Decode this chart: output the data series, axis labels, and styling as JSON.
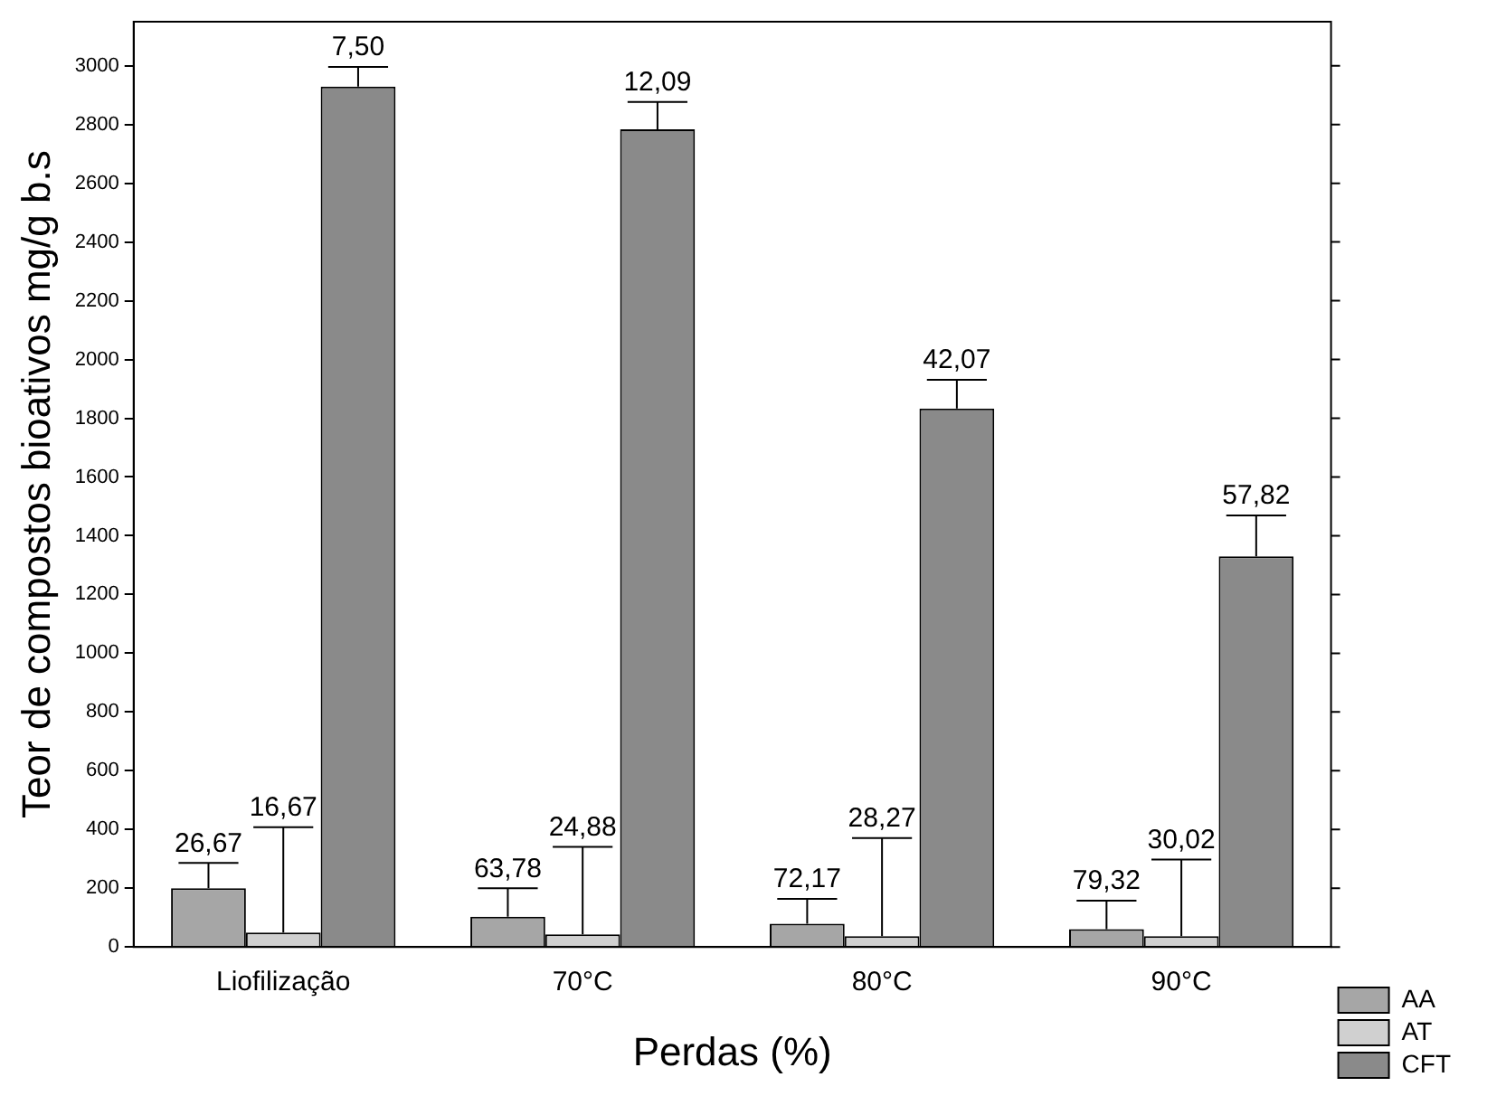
{
  "chart_data": {
    "type": "bar",
    "xlabel": "Perdas (%)",
    "ylabel": "Teor de compostos bioativos mg/g b.s",
    "categories": [
      "Liofilização",
      "70°C",
      "80°C",
      "90°C"
    ],
    "series": [
      {
        "name": "AA",
        "color": "#a6a6a6",
        "values": [
          200,
          103,
          79,
          61
        ],
        "errors": [
          86,
          97,
          85,
          97
        ]
      },
      {
        "name": "AT",
        "color": "#d0d0d0",
        "values": [
          49,
          43,
          37,
          37
        ],
        "errors": [
          359,
          298,
          334,
          261
        ]
      },
      {
        "name": "CFT",
        "color": "#8a8a8a",
        "values": [
          2929,
          2784,
          1833,
          1330
        ],
        "errors": [
          67,
          93,
          98,
          139
        ]
      }
    ],
    "annotations": [
      {
        "text": "26,67",
        "x": "Liofilização",
        "y": 286
      },
      {
        "text": "16,67",
        "x": "Liofilização",
        "y": 408
      },
      {
        "text": "7,50",
        "y": 2996
      },
      {
        "text": "63,78",
        "x": "70°C",
        "y": 200
      },
      {
        "text": "24,88",
        "x": "70°C",
        "y": 341
      },
      {
        "text": "12,09",
        "y": 2877
      },
      {
        "text": "72,17",
        "x": "80°C",
        "y": 164
      },
      {
        "text": "28,27",
        "x": "80°C",
        "y": 371
      },
      {
        "text": "42,07",
        "y": 1931
      },
      {
        "text": "79,32",
        "x": "90°C",
        "y": 158
      },
      {
        "text": "30,02",
        "x": "90°C",
        "y": 298
      },
      {
        "text": "57,82",
        "y": 1469
      }
    ],
    "ylim": [
      0,
      3150
    ],
    "yticks": [
      0,
      200,
      400,
      600,
      800,
      1000,
      1200,
      1400,
      1600,
      1800,
      2000,
      2200,
      2400,
      2600,
      2800,
      3000
    ],
    "grid": false,
    "legend": "right"
  }
}
